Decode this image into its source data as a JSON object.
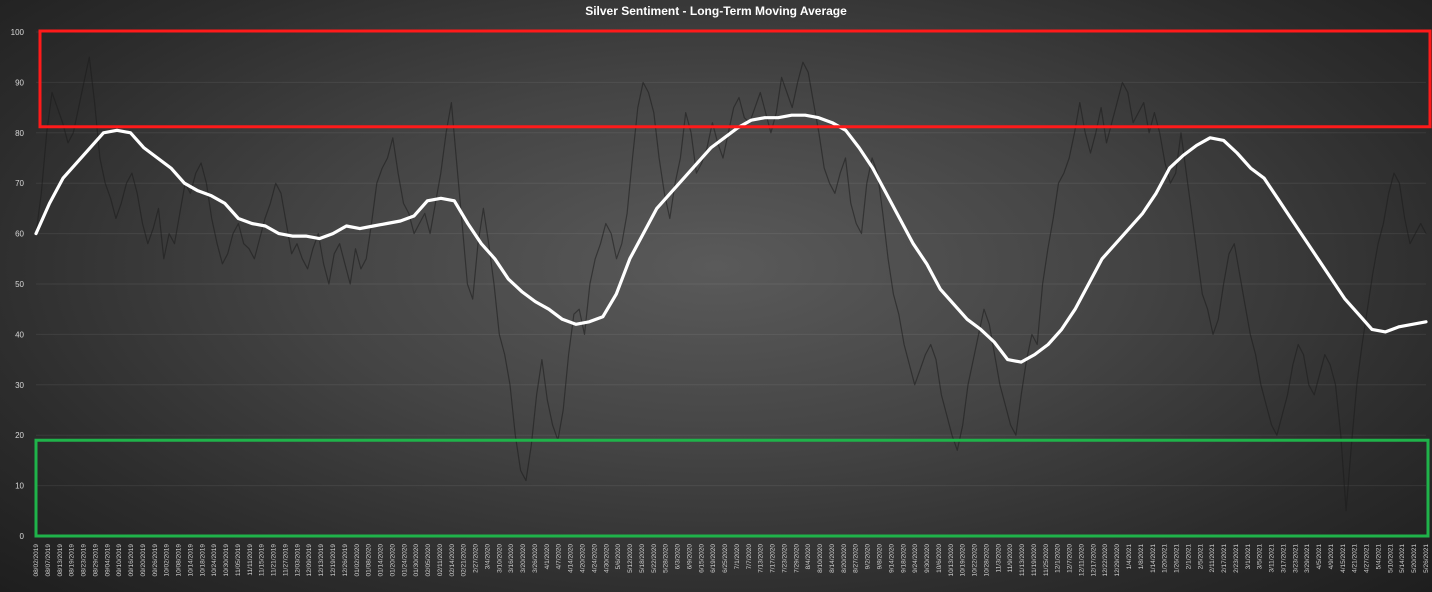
{
  "chart_data": {
    "type": "line",
    "title": "Silver Sentiment - Long-Term Moving Average",
    "xlabel": "",
    "ylabel": "",
    "ylim": [
      0,
      100
    ],
    "yticks": [
      0,
      10,
      20,
      30,
      40,
      50,
      60,
      70,
      80,
      90,
      100
    ],
    "grid": true,
    "legend": "none",
    "zones": [
      {
        "y_range": [
          81,
          100
        ],
        "color": "#ff1a1a"
      },
      {
        "y_range": [
          0,
          19
        ],
        "color": "#1fb34a"
      }
    ],
    "colors": {
      "moving_average": "#ffffff",
      "daily": "#1c1c1c"
    },
    "x_labels": [
      "08/02/2019",
      "08/07/2019",
      "08/13/2019",
      "08/19/2019",
      "08/23/2019",
      "08/29/2019",
      "09/04/2019",
      "09/10/2019",
      "09/16/2019",
      "09/20/2019",
      "09/26/2019",
      "10/02/2019",
      "10/08/2019",
      "10/14/2019",
      "10/18/2019",
      "10/24/2019",
      "10/30/2019",
      "11/05/2019",
      "11/11/2019",
      "11/15/2019",
      "11/21/2019",
      "11/27/2019",
      "12/03/2019",
      "12/09/2019",
      "12/13/2019",
      "12/19/2019",
      "12/26/2019",
      "01/02/2020",
      "01/08/2020",
      "01/14/2020",
      "01/20/2020",
      "01/24/2020",
      "01/30/2020",
      "02/05/2020",
      "02/11/2020",
      "02/14/2020",
      "02/21/2020",
      "2/27/2020",
      "3/4/2020",
      "3/10/2020",
      "3/16/2020",
      "3/20/2020",
      "3/26/2020",
      "4/1/2020",
      "4/7/2020",
      "4/14/2020",
      "4/20/2020",
      "4/24/2020",
      "4/30/2020",
      "5/6/2020",
      "5/12/2020",
      "5/18/2020",
      "5/22/2020",
      "5/28/2020",
      "6/3/2020",
      "6/9/2020",
      "6/15/2020",
      "6/19/2020",
      "6/25/2020",
      "7/1/2020",
      "7/7/2020",
      "7/13/2020",
      "7/17/2020",
      "7/23/2020",
      "7/29/2020",
      "8/4/2020",
      "8/10/2020",
      "8/14/2020",
      "8/20/2020",
      "8/27/2020",
      "9/2/2020",
      "9/8/2020",
      "9/14/2020",
      "9/18/2020",
      "9/24/2020",
      "9/30/2020",
      "10/6/2020",
      "10/13/2020",
      "10/19/2020",
      "10/22/2020",
      "10/28/2020",
      "11/3/2020",
      "11/9/2020",
      "11/13/2020",
      "11/19/2020",
      "11/25/2020",
      "12/1/2020",
      "12/7/2020",
      "12/11/2020",
      "12/17/2020",
      "12/22/2020",
      "12/29/2020",
      "1/4/2021",
      "1/8/2021",
      "1/14/2021",
      "1/20/2021",
      "1/26/2021",
      "2/1/2021",
      "2/5/2021",
      "2/11/2021",
      "2/17/2021",
      "2/23/2021",
      "3/1/2021",
      "3/5/2021",
      "3/11/2021",
      "3/17/2021",
      "3/23/2021",
      "3/29/2021",
      "4/5/2021",
      "4/9/2021",
      "4/15/2021",
      "4/21/2021",
      "4/27/2021",
      "5/4/2021",
      "5/10/2021",
      "5/14/2021",
      "5/20/2021",
      "5/26/2021"
    ],
    "series": [
      {
        "values": [
          60,
          66,
          71,
          74,
          77,
          80,
          80.5,
          80,
          77,
          75,
          73,
          70,
          68.5,
          67.5,
          66,
          63,
          62,
          61.5,
          60,
          59.5,
          59.5,
          59,
          60,
          61.5,
          61,
          61.5,
          62,
          62.5,
          63.5,
          66.5,
          67,
          66.5,
          62,
          58,
          55,
          51,
          48.5,
          46.5,
          45,
          43,
          42,
          42.5,
          43.5,
          48,
          55,
          60,
          65,
          68,
          71,
          74,
          77,
          79,
          81,
          82.5,
          83,
          83,
          83.5,
          83.5,
          83,
          82,
          80.5,
          77,
          73,
          68,
          63,
          58,
          54,
          49,
          46,
          43,
          41,
          38.5,
          35,
          34.5,
          36,
          38,
          41,
          45,
          50,
          55,
          58,
          61,
          64,
          68,
          73,
          75.5,
          77.5,
          79,
          78.5,
          76,
          73,
          71,
          67,
          63,
          59,
          55,
          51,
          47,
          44,
          41,
          40.5,
          41.5,
          42,
          42.5
        ]
      },
      {
        "values": [
          60,
          68,
          80,
          88,
          85,
          82,
          78,
          80,
          85,
          90,
          95,
          86,
          75,
          70,
          67,
          63,
          66,
          70,
          72,
          68,
          62,
          58,
          61,
          65,
          55,
          60,
          58,
          64,
          70,
          68,
          72,
          74,
          70,
          63,
          58,
          54,
          56,
          60,
          62,
          58,
          57,
          55,
          59,
          63,
          66,
          70,
          68,
          62,
          56,
          58,
          55,
          53,
          57,
          60,
          54,
          50,
          56,
          58,
          54,
          50,
          57,
          53,
          55,
          62,
          70,
          73,
          75,
          79,
          72,
          66,
          64,
          60,
          62,
          64,
          60,
          66,
          72,
          80,
          86,
          74,
          62,
          50,
          47,
          58,
          65,
          58,
          50,
          40,
          36,
          30,
          20,
          13,
          11,
          18,
          28,
          35,
          27,
          22,
          19,
          25,
          36,
          44,
          45,
          40,
          50,
          55,
          58,
          62,
          60,
          55,
          58,
          64,
          75,
          85,
          90,
          88,
          84,
          75,
          68,
          63,
          70,
          75,
          84,
          80,
          72,
          74,
          77,
          82,
          78,
          75,
          80,
          85,
          87,
          83,
          82,
          85,
          88,
          84,
          80,
          84,
          91,
          88,
          85,
          90,
          94,
          92,
          86,
          80,
          73,
          70,
          68,
          72,
          75,
          66,
          62,
          60,
          70,
          75,
          72,
          64,
          55,
          48,
          44,
          38,
          34,
          30,
          33,
          36,
          38,
          35,
          28,
          24,
          20,
          17,
          22,
          30,
          35,
          40,
          45,
          42,
          36,
          30,
          26,
          22,
          20,
          28,
          35,
          40,
          38,
          50,
          57,
          63,
          70,
          72,
          75,
          80,
          86,
          80,
          76,
          80,
          85,
          78,
          82,
          86,
          90,
          88,
          82,
          84,
          86,
          80,
          84,
          80,
          74,
          70,
          72,
          80,
          72,
          64,
          56,
          48,
          45,
          40,
          43,
          50,
          56,
          58,
          52,
          46,
          40,
          36,
          30,
          26,
          22,
          20,
          24,
          28,
          34,
          38,
          36,
          30,
          28,
          32,
          36,
          34,
          30,
          20,
          5,
          18,
          30,
          38,
          45,
          52,
          58,
          62,
          68,
          72,
          70,
          63,
          58,
          60,
          62,
          60
        ]
      }
    ]
  }
}
